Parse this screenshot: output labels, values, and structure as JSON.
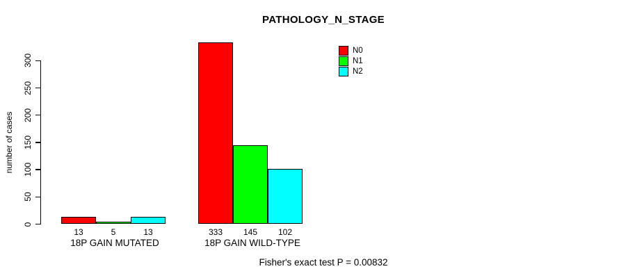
{
  "chart_data": {
    "type": "bar",
    "title": "PATHOLOGY_N_STAGE",
    "ylabel": "number of cases",
    "xlabel": "",
    "ylim": [
      0,
      300
    ],
    "yticks": [
      0,
      50,
      100,
      150,
      200,
      250,
      300
    ],
    "grid": false,
    "legend_position": "top-right",
    "categories": [
      "18P GAIN MUTATED",
      "18P GAIN WILD-TYPE"
    ],
    "series": [
      {
        "name": "N0",
        "color": "#ff0000",
        "values": [
          13,
          333
        ]
      },
      {
        "name": "N1",
        "color": "#00ff00",
        "values": [
          5,
          145
        ]
      },
      {
        "name": "N2",
        "color": "#00ffff",
        "values": [
          13,
          102
        ]
      }
    ],
    "footer": "Fisher's exact test P = 0.00832",
    "axis_color": "#000000",
    "background_color": "#ffffff"
  }
}
